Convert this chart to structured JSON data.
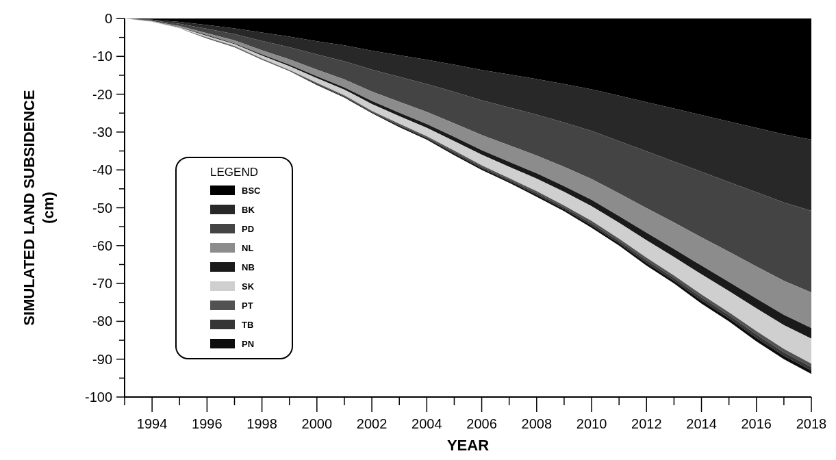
{
  "chart_data": {
    "type": "area",
    "stacked": true,
    "xlabel": "YEAR",
    "ylabel": "SIMULATED LAND SUBSIDENCE\n(cm)",
    "legend_title": "LEGEND",
    "legend": "left",
    "grid": false,
    "x": [
      1993,
      1994,
      1995,
      1996,
      1997,
      1998,
      1999,
      2000,
      2001,
      2002,
      2003,
      2004,
      2005,
      2006,
      2007,
      2008,
      2009,
      2010,
      2011,
      2012,
      2013,
      2014,
      2015,
      2016,
      2017,
      2018
    ],
    "xlim": [
      1993,
      2018
    ],
    "xticks": [
      {
        "value": 1993,
        "label": null
      },
      1994,
      {
        "value": 1995,
        "label": null
      },
      1996,
      {
        "value": 1997,
        "label": null
      },
      1998,
      {
        "value": 1999,
        "label": null
      },
      2000,
      {
        "value": 2001,
        "label": null
      },
      2002,
      {
        "value": 2003,
        "label": null
      },
      2004,
      {
        "value": 2005,
        "label": null
      },
      2006,
      {
        "value": 2007,
        "label": null
      },
      2008,
      {
        "value": 2009,
        "label": null
      },
      2010,
      {
        "value": 2011,
        "label": null
      },
      2012,
      {
        "value": 2013,
        "label": null
      },
      2014,
      {
        "value": 2015,
        "label": null
      },
      2016,
      {
        "value": 2017,
        "label": null
      },
      2018
    ],
    "ylim": [
      -100,
      0
    ],
    "yticks": [
      0,
      {
        "value": -5,
        "label": null
      },
      -10,
      {
        "value": -15,
        "label": null
      },
      -20,
      {
        "value": -25,
        "label": null
      },
      -30,
      {
        "value": -35,
        "label": null
      },
      -40,
      {
        "value": -45,
        "label": null
      },
      -50,
      {
        "value": -55,
        "label": null
      },
      -60,
      {
        "value": -65,
        "label": null
      },
      -70,
      {
        "value": -75,
        "label": null
      },
      -80,
      {
        "value": -85,
        "label": null
      },
      -90,
      {
        "value": -95,
        "label": null
      },
      -100
    ],
    "series": [
      {
        "name": "BSC",
        "color": "#000000",
        "values": [
          0,
          -0.3,
          -0.9,
          -1.7,
          -2.6,
          -3.7,
          -4.8,
          -6,
          -7.1,
          -8.5,
          -9.7,
          -10.9,
          -12.2,
          -13.6,
          -14.8,
          -16,
          -17.3,
          -18.7,
          -20.4,
          -22.1,
          -23.8,
          -25.5,
          -27.2,
          -28.9,
          -30.6,
          -32
        ]
      },
      {
        "name": "BK",
        "color": "#282828",
        "values": [
          0,
          -0.2,
          -0.5,
          -1,
          -1.5,
          -2.2,
          -2.8,
          -3.5,
          -4.2,
          -5,
          -5.7,
          -6.4,
          -7.2,
          -8,
          -8.7,
          -9.4,
          -10.2,
          -11,
          -12,
          -13,
          -14,
          -15,
          -16,
          -17,
          -18,
          -18.8
        ]
      },
      {
        "name": "PD",
        "color": "#444444",
        "values": [
          0,
          -0.2,
          -0.6,
          -1.2,
          -1.7,
          -2.5,
          -3.2,
          -4,
          -4.8,
          -5.8,
          -6.6,
          -7.4,
          -8.3,
          -9.2,
          -10,
          -10.8,
          -11.7,
          -12.7,
          -13.8,
          -15,
          -16.1,
          -17.3,
          -18.4,
          -19.6,
          -20.7,
          -21.6
        ]
      },
      {
        "name": "NL",
        "color": "#8c8c8c",
        "values": [
          0,
          -0.1,
          -0.3,
          -0.5,
          -0.8,
          -1.1,
          -1.4,
          -1.8,
          -2.1,
          -2.5,
          -2.9,
          -3.2,
          -3.6,
          -4,
          -4.4,
          -4.7,
          -5.1,
          -5.5,
          -6,
          -6.5,
          -7,
          -7.5,
          -8,
          -8.5,
          -9,
          -9.4
        ]
      },
      {
        "name": "NB",
        "color": "#1a1a1a",
        "values": [
          0,
          0,
          -0.1,
          -0.2,
          -0.2,
          -0.3,
          -0.4,
          -0.5,
          -0.6,
          -0.8,
          -0.9,
          -1,
          -1.1,
          -1.2,
          -1.3,
          -1.4,
          -1.5,
          -1.7,
          -1.8,
          -2,
          -2.1,
          -2.3,
          -2.4,
          -2.6,
          -2.7,
          -2.8
        ]
      },
      {
        "name": "SK",
        "color": "#cfcfcf",
        "values": [
          0,
          -0.1,
          -0.2,
          -0.4,
          -0.5,
          -0.8,
          -1,
          -1.2,
          -1.5,
          -1.8,
          -2,
          -2.2,
          -2.5,
          -2.8,
          -3,
          -3.3,
          -3.6,
          -3.9,
          -4.2,
          -4.6,
          -4.9,
          -5.3,
          -5.6,
          -6,
          -6.3,
          -6.6
        ]
      },
      {
        "name": "PT",
        "color": "#525252",
        "values": [
          0,
          0,
          0,
          -0.1,
          -0.1,
          -0.1,
          -0.1,
          -0.2,
          -0.2,
          -0.2,
          -0.3,
          -0.3,
          -0.4,
          -0.4,
          -0.4,
          -0.5,
          -0.5,
          -0.6,
          -0.6,
          -0.7,
          -0.7,
          -0.8,
          -0.8,
          -0.9,
          -0.9,
          -0.9
        ]
      },
      {
        "name": "TB",
        "color": "#363636",
        "values": [
          0,
          0,
          0,
          -0.1,
          -0.1,
          -0.1,
          -0.1,
          -0.2,
          -0.2,
          -0.2,
          -0.3,
          -0.3,
          -0.4,
          -0.4,
          -0.4,
          -0.5,
          -0.5,
          -0.6,
          -0.6,
          -0.7,
          -0.7,
          -0.8,
          -0.8,
          -0.9,
          -0.9,
          -0.9
        ]
      },
      {
        "name": "PN",
        "color": "#0d0d0d",
        "values": [
          0,
          0,
          0,
          -0.1,
          -0.1,
          -0.1,
          -0.1,
          -0.2,
          -0.2,
          -0.2,
          -0.3,
          -0.3,
          -0.4,
          -0.4,
          -0.4,
          -0.5,
          -0.5,
          -0.6,
          -0.6,
          -0.7,
          -0.7,
          -0.8,
          -0.8,
          -0.9,
          -0.9,
          -0.9
        ]
      }
    ]
  }
}
